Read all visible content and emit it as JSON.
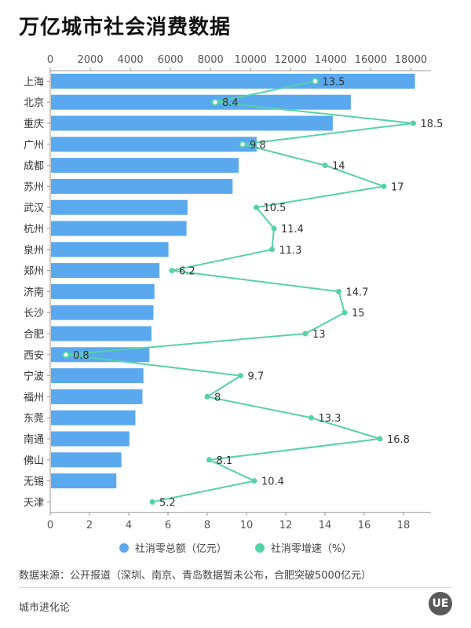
{
  "title": "万亿城市社会消费数据",
  "chart_data": {
    "type": "bar",
    "orientation": "horizontal",
    "categories": [
      "上海",
      "北京",
      "重庆",
      "广州",
      "成都",
      "苏州",
      "武汉",
      "杭州",
      "泉州",
      "郑州",
      "济南",
      "长沙",
      "合肥",
      "西安",
      "宁波",
      "福州",
      "东莞",
      "南通",
      "佛山",
      "无锡",
      "天津"
    ],
    "series": [
      {
        "name": "社消零总额（亿元）",
        "type": "bar",
        "axis": "top",
        "color": "#5aa9ef",
        "values": [
          18200,
          15000,
          14100,
          10300,
          9400,
          9100,
          6850,
          6800,
          5900,
          5450,
          5200,
          5150,
          5050,
          4950,
          4650,
          4600,
          4250,
          3950,
          3550,
          3300,
          null
        ]
      },
      {
        "name": "社消零增速（%）",
        "type": "line",
        "axis": "bottom",
        "color": "#56d2a8",
        "values": [
          13.5,
          8.4,
          18.5,
          9.8,
          14,
          17,
          10.5,
          11.4,
          11.3,
          6.2,
          14.7,
          15,
          13,
          0.8,
          9.7,
          8,
          13.3,
          16.8,
          8.1,
          10.4,
          5.2
        ],
        "labels": [
          "13.5",
          "8.4",
          "18.5",
          "9.8",
          "14",
          "17",
          "10.5",
          "11.4",
          "11.3",
          "6.2",
          "14.7",
          "15",
          "13",
          "0.8",
          "9.7",
          "8",
          "13.3",
          "16.8",
          "8.1",
          "10.4",
          "5.2"
        ]
      }
    ],
    "top_axis": {
      "range": [
        0,
        19000
      ],
      "ticks": [
        0,
        2000,
        4000,
        6000,
        8000,
        10000,
        12000,
        14000,
        16000,
        18000
      ]
    },
    "bottom_axis": {
      "range": [
        0,
        19.4
      ],
      "ticks": [
        0,
        2,
        4,
        6,
        8,
        10,
        12,
        14,
        16,
        18
      ]
    },
    "legend": "bottom",
    "grid": false
  },
  "source_note": "数据来源：公开报道（深圳、南京、青岛数据暂未公布，合肥突破5000亿元）",
  "brand": "城市进化论",
  "logo_text": "UE"
}
